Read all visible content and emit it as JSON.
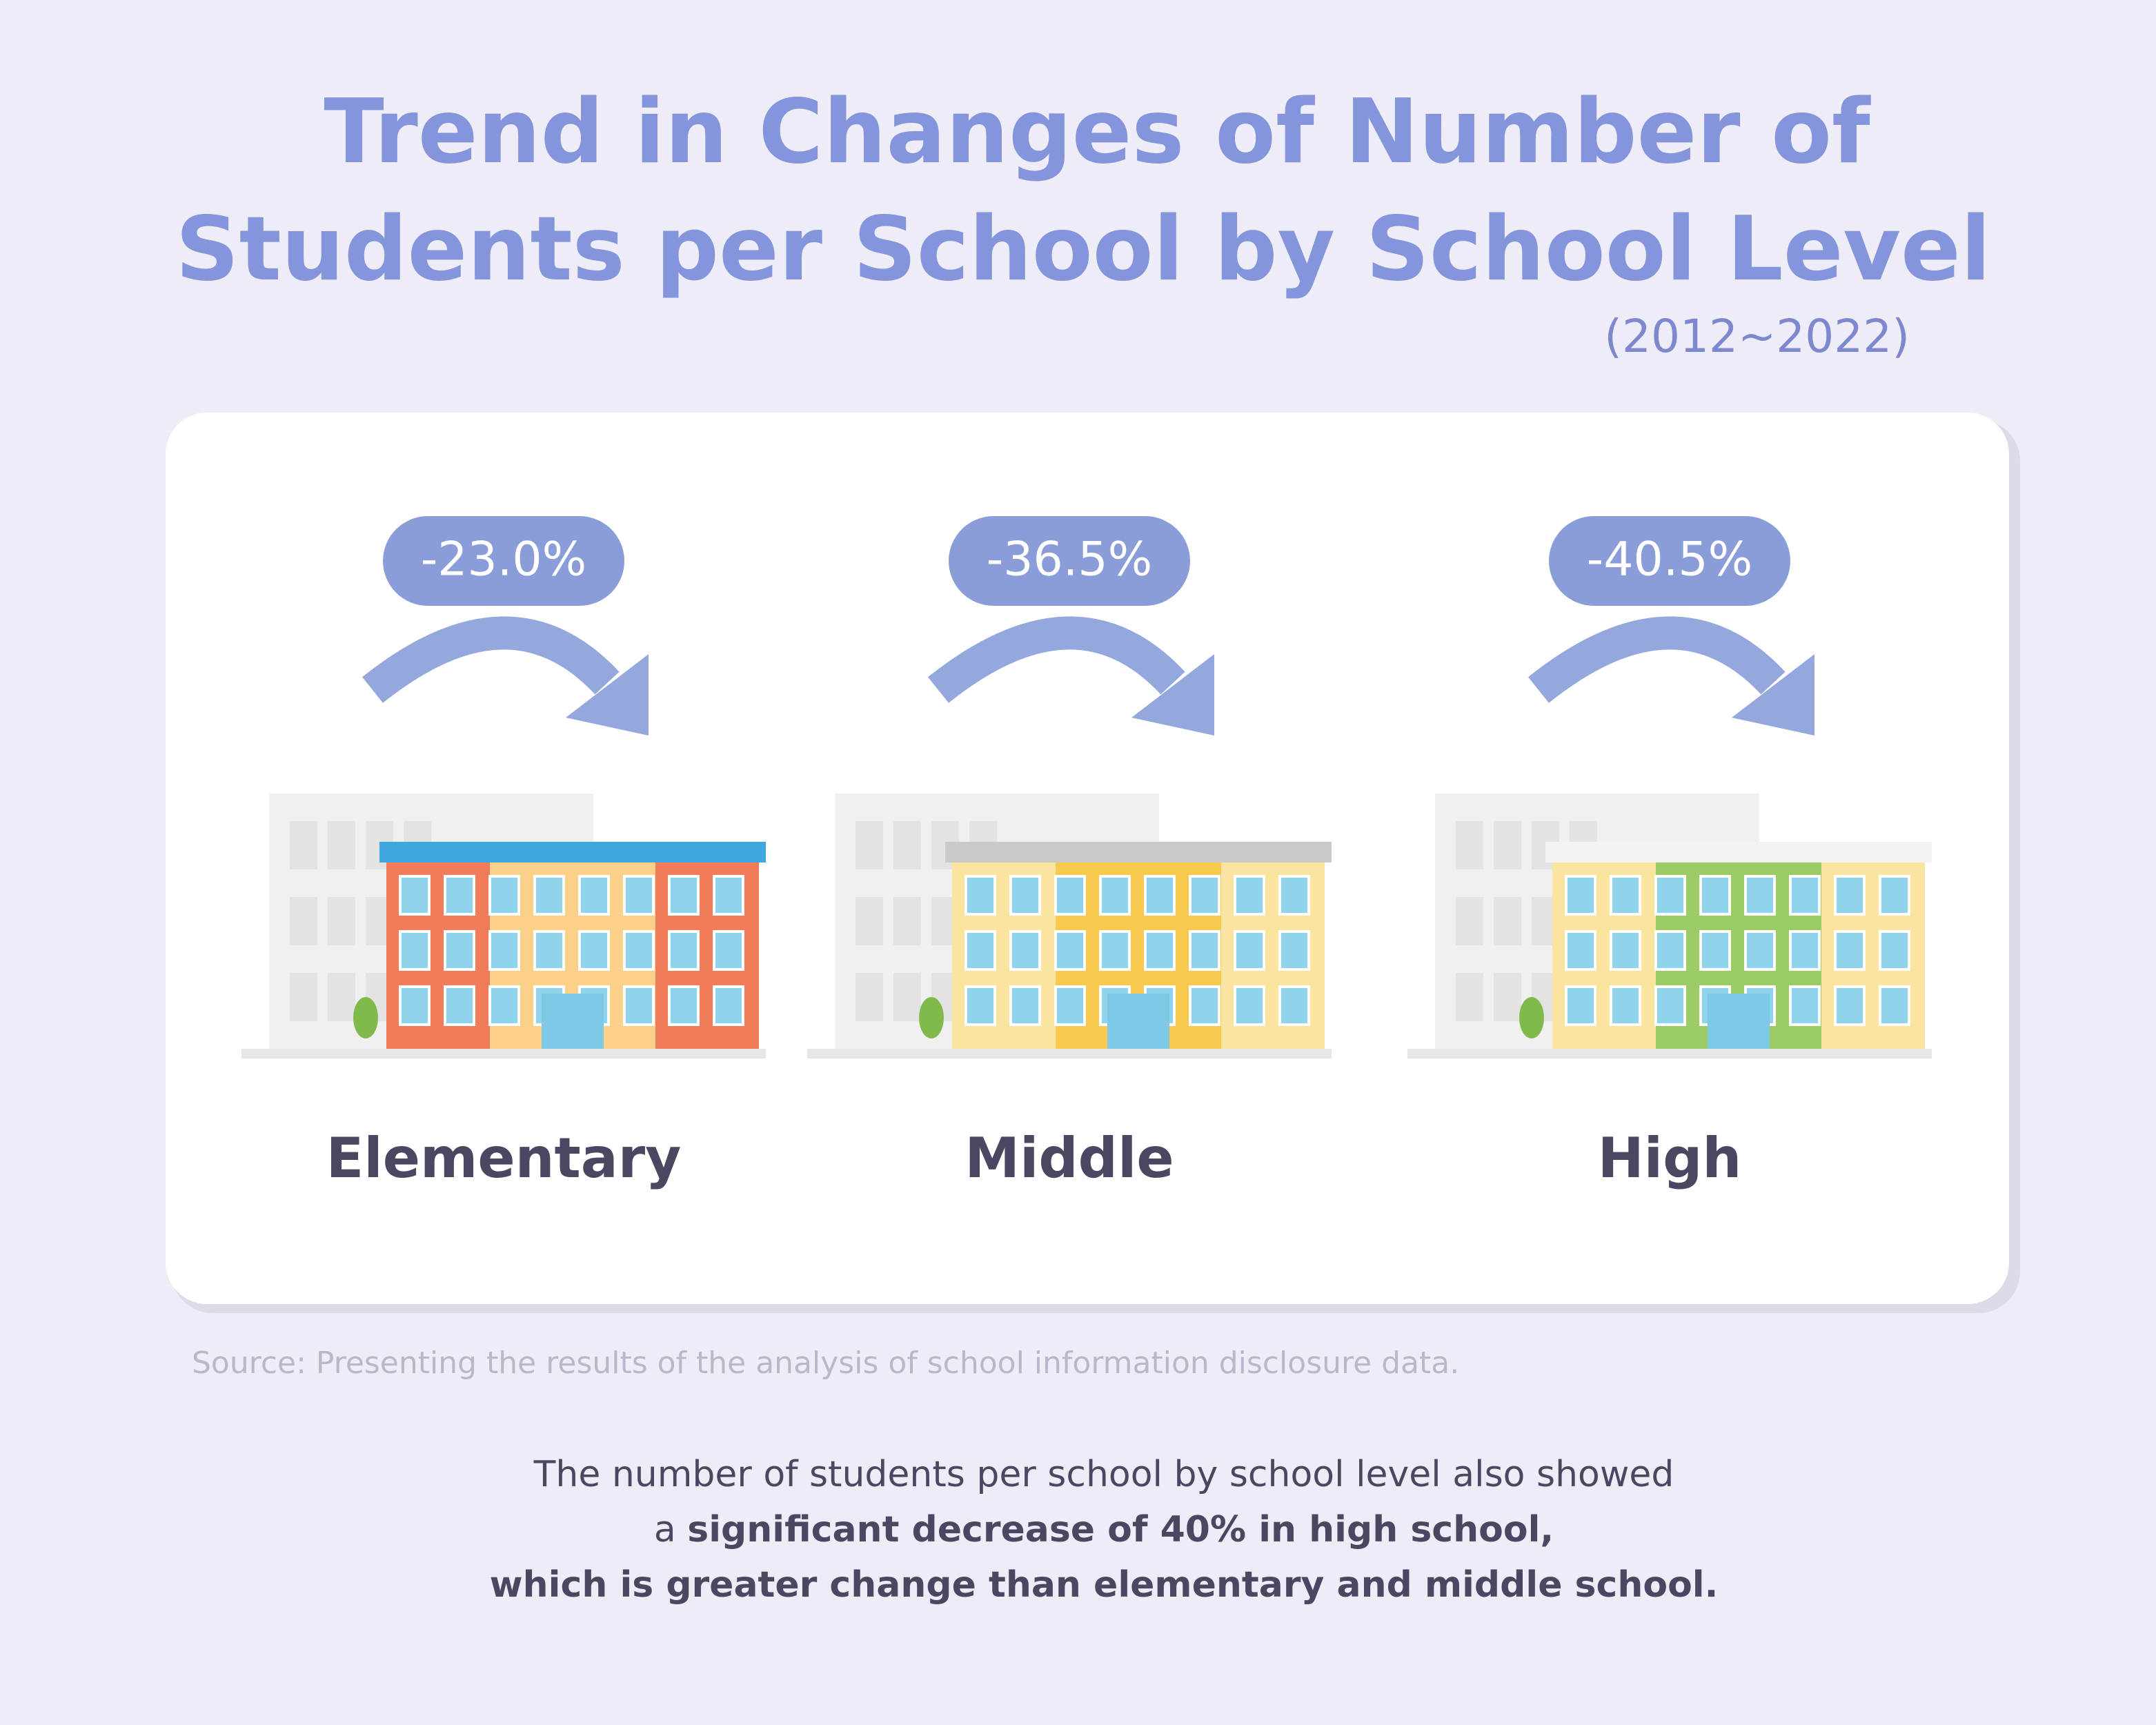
{
  "header": {
    "title_lines": [
      "Trend in Changes of Number of",
      "Students per School by School Level"
    ],
    "period": "(2012~2022)"
  },
  "items": [
    {
      "change": "-23.0%",
      "label": "Elementary"
    },
    {
      "change": "-36.5%",
      "label": "Middle"
    },
    {
      "change": "-40.5%",
      "label": "High"
    }
  ],
  "source": "Source: Presenting the results of the analysis of school information disclosure data.",
  "summary": {
    "lines": [
      [
        {
          "text": "The number of students per school by school level also showed",
          "bold": false
        }
      ],
      [
        {
          "text": "a ",
          "bold": false
        },
        {
          "text": "significant decrease of 40% in high school,",
          "bold": true
        }
      ],
      [
        {
          "text": "which is greater change than elementary and middle school.",
          "bold": true
        }
      ]
    ]
  }
}
